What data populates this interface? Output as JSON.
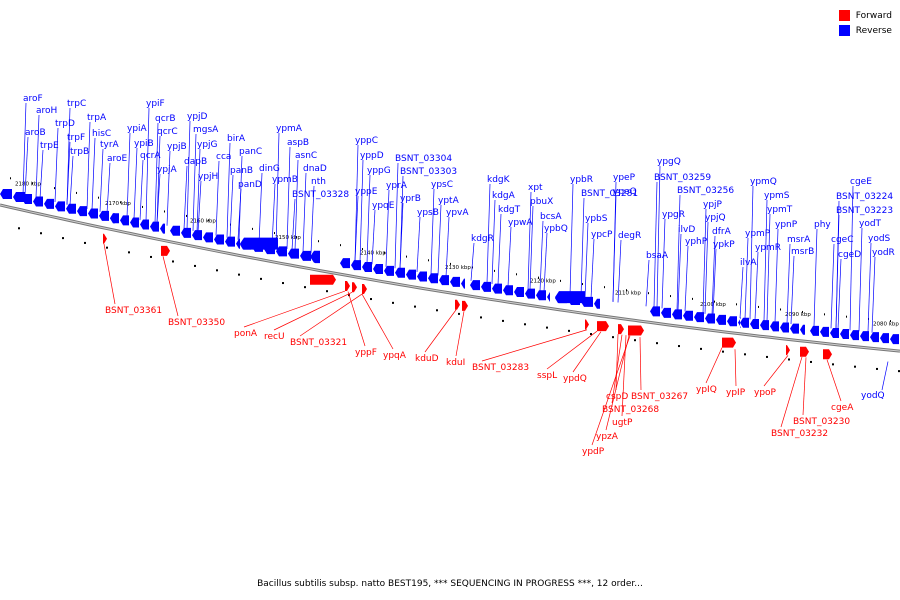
{
  "legend": {
    "forward_label": "Forward",
    "reverse_label": "Reverse",
    "forward_color": "#ff0000",
    "reverse_color": "#0000ff"
  },
  "caption": "Bacillus subtilis subsp. natto BEST195, *** SEQUENCING IN PROGRESS ***, 12 order...",
  "axis": {
    "unit": "kbp",
    "ticks": [
      "2180 kbp",
      "2170 kbp",
      "2160 kbp",
      "2150 kbp",
      "2140 kbp",
      "2130 kbp",
      "2120 kbp",
      "2110 kbp",
      "2100 kbp",
      "2090 kbp",
      "2080 kbp"
    ]
  },
  "reverse_labels": [
    "aroF",
    "aroH",
    "aroB",
    "trpE",
    "trpD",
    "trpC",
    "trpF",
    "trpB",
    "trpA",
    "hisC",
    "tyrA",
    "aroE",
    "ypiA",
    "ypiB",
    "ypiF",
    "qcrB",
    "qcrC",
    "qcrA",
    "ypjB",
    "ypjA",
    "ypjD",
    "mgsA",
    "dapB",
    "ypjG",
    "ypjH",
    "cca",
    "birA",
    "panC",
    "panB",
    "panD",
    "dinG",
    "ypmA",
    "aspB",
    "ypmB",
    "asnC",
    "dnaD",
    "nth",
    "BSNT_03328",
    "yppC",
    "yppD",
    "yppG",
    "yppE",
    "ypqE",
    "yprA",
    "yprB",
    "BSNT_03304",
    "BSNT_03303",
    "ypsB",
    "ypsC",
    "yptA",
    "ypvA",
    "kdgR",
    "kdgK",
    "kdgA",
    "kdgT",
    "ypwA",
    "xpt",
    "pbuX",
    "bcsA",
    "ypbQ",
    "ypbR",
    "BSNT_03281",
    "ypbS",
    "ypcP",
    "ypeP",
    "ypeQ",
    "degR",
    "ypgQ",
    "BSNT_03259",
    "ypgR",
    "ilvD",
    "BSNT_03256",
    "yphP",
    "ypjP",
    "ypjQ",
    "dfrA",
    "ypkP",
    "bsaA",
    "ypmQ",
    "ypmS",
    "ypmT",
    "ilvA",
    "ypmP",
    "ypmR",
    "ypnP",
    "msrA",
    "msrB",
    "phy",
    "cgeE",
    "BSNT_03224",
    "BSNT_03223",
    "cgeC",
    "yodT",
    "cgeD",
    "yodS",
    "yodR",
    "yodQ"
  ],
  "forward_labels": [
    "BSNT_03361",
    "BSNT_03350",
    "ponA",
    "recU",
    "BSNT_03321",
    "yppF",
    "ypqA",
    "kduD",
    "kduI",
    "BSNT_03283",
    "sspL",
    "ypdQ",
    "cspD",
    "BSNT_03268",
    "ugtP",
    "ypzA",
    "ypdP",
    "BSNT_03267",
    "ypIQ",
    "ypIP",
    "ypoP",
    "BSNT_03230",
    "BSNT_03232",
    "cgeA"
  ]
}
